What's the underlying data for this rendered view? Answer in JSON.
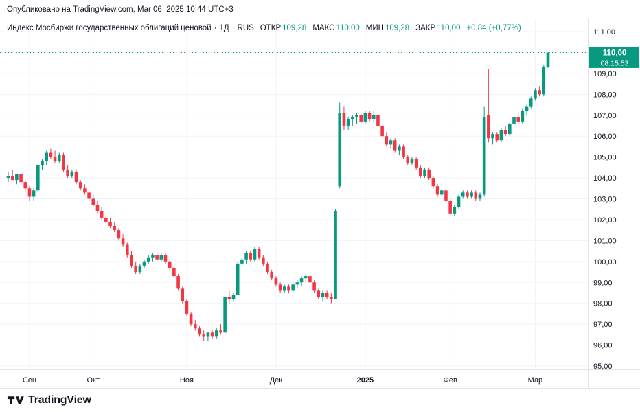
{
  "publish_bar": {
    "text": "Опубликовано на TradingView.com, Mar 06, 2025 10:44 UTC+3"
  },
  "legend": {
    "symbol": "Индекс Мосбиржи государственных облигаций ценовой",
    "separator": "·",
    "timeframe": "1Д",
    "exchange": "RUS",
    "fields": [
      {
        "label": "ОТКР",
        "value": "109,28"
      },
      {
        "label": "МАКС",
        "value": "110,00"
      },
      {
        "label": "МИН",
        "value": "109,28"
      },
      {
        "label": "ЗАКР",
        "value": "110,00"
      }
    ],
    "change": "+0,84 (+0,77%)"
  },
  "price_axis": {
    "last_price": {
      "price": "110,00",
      "countdown": "08:15:53"
    }
  },
  "footer": {
    "brand": "TradingView"
  },
  "colors": {
    "up": "#089981",
    "down": "#f23645",
    "axis_text": "#131722",
    "grid": "#f0f3fa",
    "frame": "#e0e3eb",
    "background": "#ffffff"
  },
  "chart_data": {
    "type": "candlestick",
    "title": "Индекс Мосбиржи государственных облигаций ценовой",
    "timeframe": "1Д",
    "market": "RUS",
    "last": {
      "open": 109.28,
      "high": 110.0,
      "low": 109.28,
      "close": 110.0,
      "change_abs": 0.84,
      "change_pct": 0.77
    },
    "ylim": [
      94.8,
      111.3
    ],
    "price_line": 110.0,
    "grid": true,
    "y_ticks": [
      95,
      96,
      97,
      98,
      99,
      100,
      101,
      102,
      103,
      104,
      105,
      106,
      107,
      108,
      109,
      110,
      111
    ],
    "y_tick_labels": [
      "95,00",
      "96,00",
      "97,00",
      "98,00",
      "99,00",
      "100,00",
      "101,00",
      "102,00",
      "103,00",
      "104,00",
      "105,00",
      "106,00",
      "107,00",
      "108,00",
      "109,00",
      "110,00",
      "111,00"
    ],
    "x_ticks": [
      {
        "label": "Сен",
        "index": 5
      },
      {
        "label": "Окт",
        "index": 20
      },
      {
        "label": "Ноя",
        "index": 42
      },
      {
        "label": "Дек",
        "index": 63
      },
      {
        "label": "2025",
        "index": 84,
        "bold": true
      },
      {
        "label": "Фев",
        "index": 104
      },
      {
        "label": "Мар",
        "index": 124
      }
    ],
    "candles": [
      [
        104.0,
        104.3,
        103.8,
        104.1
      ],
      [
        104.1,
        104.4,
        103.9,
        103.9
      ],
      [
        103.9,
        104.2,
        103.7,
        104.2
      ],
      [
        104.2,
        104.4,
        103.7,
        103.8
      ],
      [
        103.8,
        103.9,
        103.3,
        103.5
      ],
      [
        103.5,
        103.6,
        102.9,
        103.1
      ],
      [
        103.1,
        103.5,
        102.9,
        103.4
      ],
      [
        103.4,
        104.7,
        103.3,
        104.6
      ],
      [
        104.6,
        104.9,
        104.4,
        104.8
      ],
      [
        104.8,
        105.3,
        104.6,
        105.2
      ],
      [
        105.2,
        105.4,
        104.9,
        105.0
      ],
      [
        105.0,
        105.3,
        104.7,
        104.8
      ],
      [
        104.8,
        105.2,
        104.7,
        105.1
      ],
      [
        105.1,
        105.2,
        104.3,
        104.4
      ],
      [
        104.4,
        104.6,
        104.0,
        104.1
      ],
      [
        104.1,
        104.4,
        104.0,
        104.3
      ],
      [
        104.3,
        104.4,
        103.7,
        103.8
      ],
      [
        103.8,
        103.9,
        103.4,
        103.5
      ],
      [
        103.5,
        103.7,
        103.2,
        103.3
      ],
      [
        103.3,
        103.5,
        102.9,
        103.0
      ],
      [
        103.0,
        103.2,
        102.6,
        102.7
      ],
      [
        102.7,
        102.9,
        102.3,
        102.4
      ],
      [
        102.4,
        102.6,
        102.0,
        102.1
      ],
      [
        102.1,
        102.3,
        101.8,
        101.9
      ],
      [
        101.9,
        102.1,
        101.6,
        101.7
      ],
      [
        101.7,
        101.9,
        101.4,
        101.5
      ],
      [
        101.5,
        101.6,
        101.0,
        101.1
      ],
      [
        101.1,
        101.3,
        100.7,
        100.8
      ],
      [
        100.8,
        100.9,
        100.2,
        100.3
      ],
      [
        100.3,
        100.5,
        99.7,
        99.8
      ],
      [
        99.8,
        100.0,
        99.4,
        99.5
      ],
      [
        99.5,
        99.9,
        99.4,
        99.8
      ],
      [
        99.8,
        100.1,
        99.7,
        100.0
      ],
      [
        100.0,
        100.3,
        99.9,
        100.2
      ],
      [
        100.2,
        100.4,
        100.0,
        100.3
      ],
      [
        100.3,
        100.4,
        100.0,
        100.1
      ],
      [
        100.1,
        100.4,
        100.0,
        100.3
      ],
      [
        100.3,
        100.4,
        99.9,
        100.0
      ],
      [
        100.0,
        100.1,
        99.6,
        99.7
      ],
      [
        99.7,
        99.8,
        99.2,
        99.3
      ],
      [
        99.3,
        99.4,
        98.6,
        98.7
      ],
      [
        98.7,
        98.8,
        98.0,
        98.1
      ],
      [
        98.1,
        98.2,
        97.4,
        97.5
      ],
      [
        97.5,
        97.6,
        96.9,
        97.0
      ],
      [
        97.0,
        97.2,
        96.7,
        96.8
      ],
      [
        96.8,
        96.9,
        96.4,
        96.5
      ],
      [
        96.5,
        96.7,
        96.2,
        96.4
      ],
      [
        96.4,
        96.6,
        96.2,
        96.6
      ],
      [
        96.6,
        96.7,
        96.3,
        96.4
      ],
      [
        96.4,
        96.8,
        96.3,
        96.7
      ],
      [
        96.7,
        97.0,
        96.5,
        96.6
      ],
      [
        96.6,
        98.4,
        96.5,
        98.3
      ],
      [
        98.3,
        98.6,
        98.0,
        98.2
      ],
      [
        98.2,
        98.5,
        98.1,
        98.4
      ],
      [
        98.4,
        100.0,
        98.4,
        99.9
      ],
      [
        99.9,
        100.2,
        99.7,
        100.1
      ],
      [
        100.1,
        100.5,
        99.9,
        100.4
      ],
      [
        100.4,
        100.5,
        100.0,
        100.1
      ],
      [
        100.1,
        100.7,
        100.0,
        100.6
      ],
      [
        100.6,
        100.7,
        100.1,
        100.2
      ],
      [
        100.2,
        100.3,
        99.8,
        99.9
      ],
      [
        99.9,
        100.0,
        99.4,
        99.5
      ],
      [
        99.5,
        99.6,
        99.1,
        99.2
      ],
      [
        99.2,
        99.3,
        98.8,
        98.9
      ],
      [
        98.9,
        99.0,
        98.5,
        98.6
      ],
      [
        98.6,
        98.9,
        98.5,
        98.8
      ],
      [
        98.8,
        98.9,
        98.5,
        98.6
      ],
      [
        98.6,
        99.0,
        98.5,
        98.9
      ],
      [
        98.9,
        99.1,
        98.7,
        99.0
      ],
      [
        99.0,
        99.3,
        98.8,
        99.2
      ],
      [
        99.2,
        99.4,
        99.0,
        99.3
      ],
      [
        99.3,
        99.4,
        98.9,
        99.0
      ],
      [
        99.0,
        99.1,
        98.5,
        98.6
      ],
      [
        98.6,
        98.7,
        98.2,
        98.3
      ],
      [
        98.3,
        98.6,
        98.1,
        98.5
      ],
      [
        98.5,
        98.6,
        98.2,
        98.3
      ],
      [
        98.3,
        98.5,
        98.0,
        98.2
      ],
      [
        98.2,
        102.5,
        98.2,
        102.4
      ],
      [
        103.6,
        107.6,
        103.5,
        107.1
      ],
      [
        107.1,
        107.4,
        106.3,
        106.5
      ],
      [
        106.5,
        106.9,
        106.3,
        106.8
      ],
      [
        106.8,
        107.0,
        106.5,
        106.9
      ],
      [
        106.9,
        107.1,
        106.6,
        107.0
      ],
      [
        107.0,
        107.1,
        106.6,
        106.7
      ],
      [
        106.7,
        107.2,
        106.6,
        107.1
      ],
      [
        107.1,
        107.2,
        106.7,
        106.8
      ],
      [
        106.8,
        107.2,
        106.7,
        107.0
      ],
      [
        107.0,
        107.1,
        106.4,
        106.5
      ],
      [
        106.5,
        106.6,
        105.9,
        106.0
      ],
      [
        106.0,
        106.2,
        105.5,
        105.6
      ],
      [
        105.6,
        105.9,
        105.4,
        105.8
      ],
      [
        105.8,
        105.9,
        105.2,
        105.3
      ],
      [
        105.3,
        105.6,
        105.1,
        105.5
      ],
      [
        105.5,
        105.6,
        104.9,
        105.0
      ],
      [
        105.0,
        105.1,
        104.6,
        104.7
      ],
      [
        104.7,
        105.0,
        104.6,
        104.9
      ],
      [
        104.9,
        105.0,
        104.4,
        104.5
      ],
      [
        104.5,
        104.6,
        104.0,
        104.1
      ],
      [
        104.1,
        104.5,
        104.0,
        104.4
      ],
      [
        104.4,
        104.5,
        103.9,
        104.0
      ],
      [
        104.0,
        104.1,
        103.5,
        103.6
      ],
      [
        103.6,
        103.7,
        103.1,
        103.2
      ],
      [
        103.2,
        103.5,
        103.1,
        103.4
      ],
      [
        103.4,
        103.5,
        102.8,
        102.9
      ],
      [
        102.9,
        103.0,
        102.2,
        102.3
      ],
      [
        102.3,
        102.7,
        102.2,
        102.6
      ],
      [
        102.6,
        103.2,
        102.5,
        103.1
      ],
      [
        103.1,
        103.4,
        103.0,
        103.3
      ],
      [
        103.3,
        103.4,
        103.0,
        103.1
      ],
      [
        103.1,
        103.4,
        103.0,
        103.3
      ],
      [
        103.3,
        103.4,
        102.9,
        103.0
      ],
      [
        103.0,
        103.3,
        102.9,
        103.2
      ],
      [
        103.2,
        107.4,
        103.1,
        106.9
      ],
      [
        107.0,
        109.2,
        105.7,
        105.9
      ],
      [
        105.9,
        106.2,
        105.6,
        106.1
      ],
      [
        106.1,
        106.2,
        105.7,
        105.8
      ],
      [
        105.8,
        106.4,
        105.7,
        106.3
      ],
      [
        106.3,
        106.5,
        106.0,
        106.1
      ],
      [
        106.1,
        106.7,
        106.0,
        106.6
      ],
      [
        106.6,
        107.0,
        106.4,
        106.9
      ],
      [
        106.9,
        107.1,
        106.6,
        106.7
      ],
      [
        106.7,
        107.3,
        106.6,
        107.2
      ],
      [
        107.2,
        107.5,
        107.0,
        107.4
      ],
      [
        107.4,
        107.9,
        107.3,
        107.8
      ],
      [
        107.8,
        108.3,
        107.7,
        108.2
      ],
      [
        108.2,
        108.4,
        107.9,
        108.0
      ],
      [
        108.0,
        109.4,
        107.9,
        109.3
      ],
      [
        109.28,
        110.0,
        109.28,
        110.0
      ]
    ]
  }
}
